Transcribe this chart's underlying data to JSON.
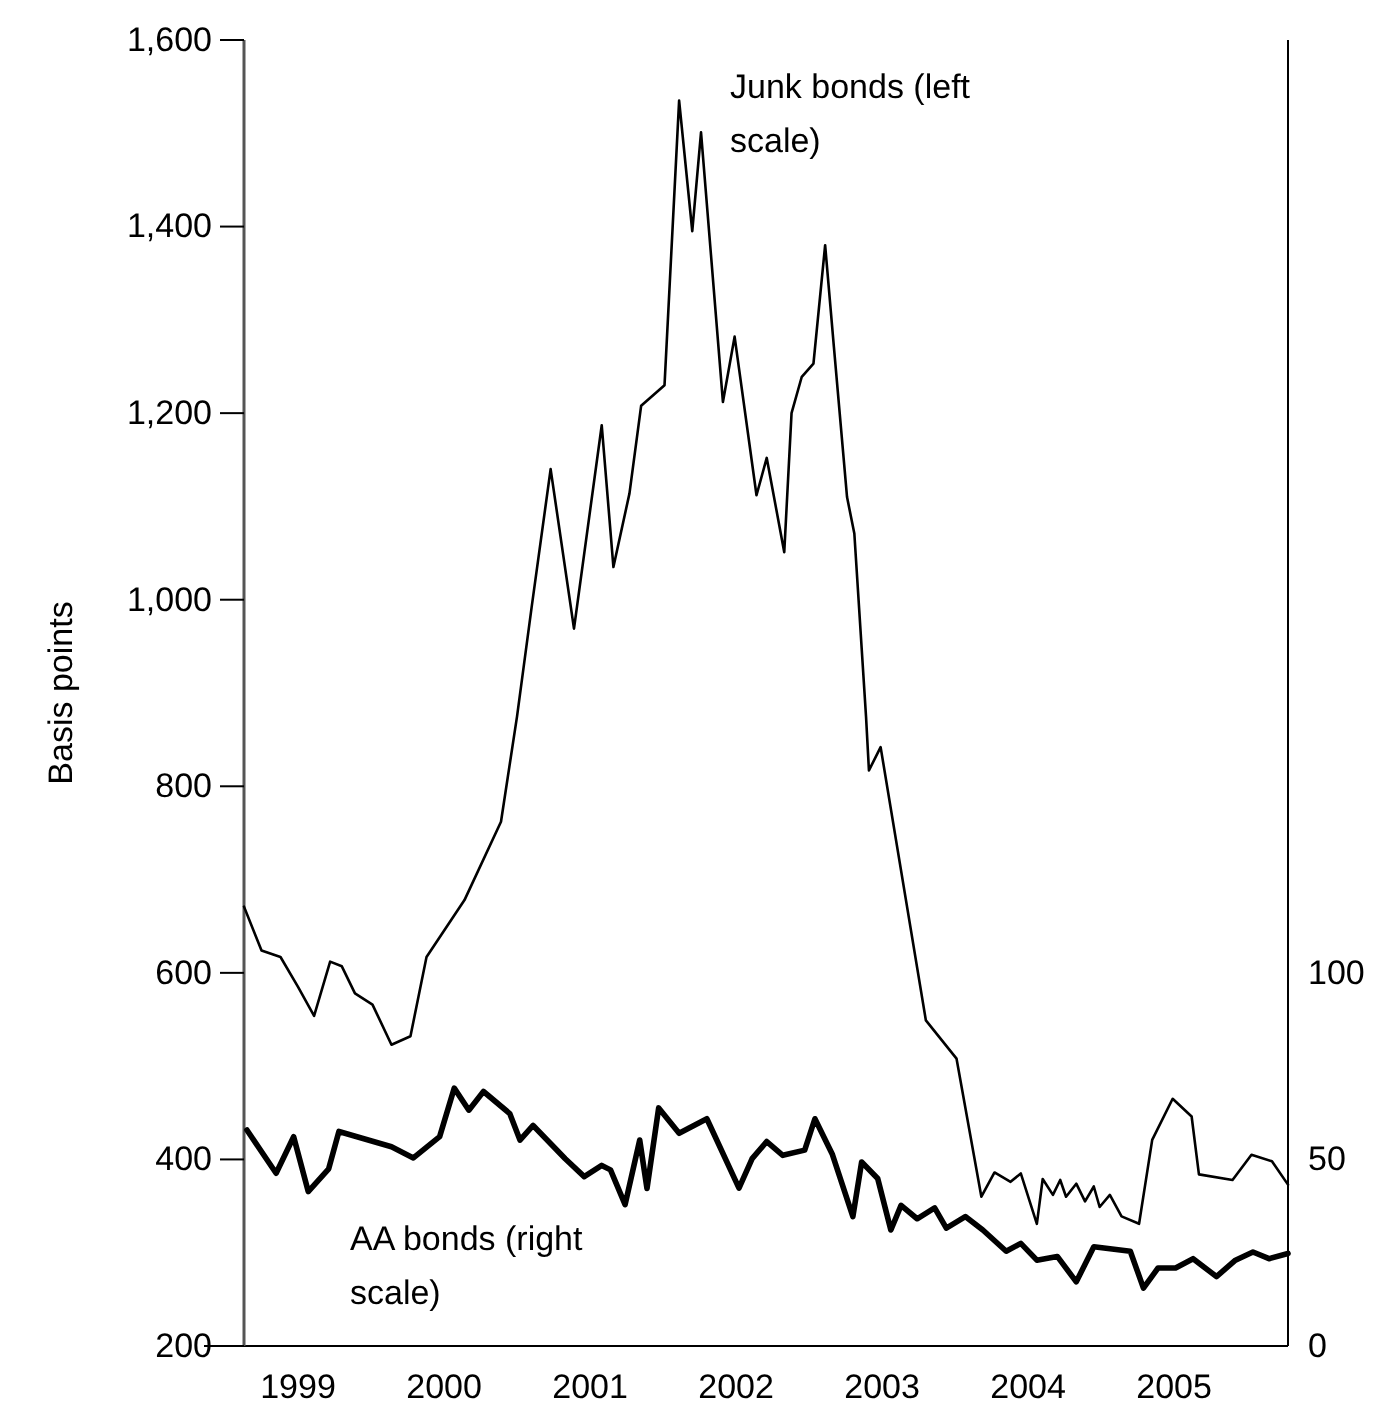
{
  "chart_data": {
    "type": "line",
    "ylabel": "Basis points",
    "xlim": [
      1999.13,
      2006.28
    ],
    "xticks": [
      {
        "value": 1999.5,
        "label": "1999"
      },
      {
        "value": 2000.5,
        "label": "2000"
      },
      {
        "value": 2001.5,
        "label": "2001"
      },
      {
        "value": 2002.5,
        "label": "2002"
      },
      {
        "value": 2003.5,
        "label": "2003"
      },
      {
        "value": 2004.5,
        "label": "2004"
      },
      {
        "value": 2005.5,
        "label": "2005"
      }
    ],
    "ylim": [
      200,
      1600
    ],
    "yticks": [
      200,
      400,
      600,
      800,
      {
        "value": 1000,
        "label": "1,000"
      },
      {
        "value": 1200,
        "label": "1,200"
      },
      {
        "value": 1400,
        "label": "1,400"
      },
      {
        "value": 1600,
        "label": "1,600"
      }
    ],
    "y2lim": [
      0,
      350
    ],
    "y2ticks": [
      0,
      50,
      100
    ],
    "grid": false,
    "legend": false,
    "series": [
      {
        "name": "Junk bonds (left scale)",
        "color": "#000000",
        "x": [
          1999.13,
          1999.25,
          1999.38,
          1999.5,
          1999.61,
          1999.72,
          1999.8,
          1999.89,
          2000.01,
          2000.14,
          2000.27,
          2000.38,
          2000.64,
          2000.89,
          2001.0,
          2001.1,
          2001.23,
          2001.39,
          2001.58,
          2001.66,
          2001.77,
          2001.85,
          2002.01,
          2002.11,
          2002.2,
          2002.26,
          2002.41,
          2002.49,
          2002.64,
          2002.71,
          2002.83,
          2002.88,
          2002.95,
          2003.03,
          2003.11,
          2003.17,
          2003.26,
          2003.31,
          2003.39,
          2003.41,
          2003.49,
          2003.8,
          2004.01,
          2004.18,
          2004.27,
          2004.38,
          2004.45,
          2004.56,
          2004.6,
          2004.67,
          2004.72,
          2004.76,
          2004.83,
          2004.89,
          2004.95,
          2004.99,
          2005.06,
          2005.14,
          2005.26,
          2005.35,
          2005.49,
          2005.62,
          2005.67,
          2005.9,
          2006.03,
          2006.17,
          2006.28
        ],
        "values": [
          671,
          624,
          617,
          585,
          554,
          612,
          607,
          578,
          566,
          523,
          532,
          617,
          678,
          762,
          875,
          992,
          1140,
          969,
          1187,
          1035,
          1114,
          1208,
          1230,
          1535,
          1395,
          1501,
          1212,
          1282,
          1112,
          1152,
          1051,
          1200,
          1239,
          1253,
          1380,
          1271,
          1110,
          1071,
          875,
          817,
          842,
          549,
          508,
          360,
          386,
          376,
          385,
          331,
          379,
          362,
          378,
          360,
          374,
          355,
          371,
          349,
          362,
          339,
          331,
          421,
          465,
          446,
          384,
          378,
          405,
          398,
          373
        ]
      },
      {
        "name": "AA bonds (right scale)",
        "color": "#000000",
        "axis": "y2",
        "x": [
          1999.15,
          1999.35,
          1999.47,
          1999.57,
          1999.71,
          1999.78,
          2000.14,
          2000.29,
          2000.47,
          2000.57,
          2000.67,
          2000.77,
          2000.95,
          2001.02,
          2001.11,
          2001.33,
          2001.46,
          2001.58,
          2001.64,
          2001.74,
          2001.84,
          2001.89,
          2001.97,
          2002.11,
          2002.3,
          2002.52,
          2002.61,
          2002.71,
          2002.82,
          2002.97,
          2003.04,
          2003.16,
          2003.3,
          2003.36,
          2003.47,
          2003.56,
          2003.63,
          2003.74,
          2003.86,
          2003.94,
          2004.07,
          2004.19,
          2004.35,
          2004.45,
          2004.56,
          2004.7,
          2004.83,
          2004.95,
          2005.2,
          2005.29,
          2005.39,
          2005.51,
          2005.63,
          2005.79,
          2005.92,
          2006.04,
          2006.15,
          2006.28
        ],
        "values": [
          57.9,
          46.3,
          56.1,
          41.4,
          47.5,
          57.5,
          53.4,
          50.4,
          56.1,
          69.1,
          63.2,
          68.2,
          62.3,
          55.2,
          59.1,
          50.2,
          45.4,
          48.4,
          47.2,
          37.9,
          55.2,
          42.2,
          63.8,
          57.0,
          60.9,
          42.3,
          50.2,
          54.8,
          51.1,
          52.5,
          60.9,
          51.3,
          34.7,
          49.3,
          44.9,
          31.1,
          37.7,
          34.1,
          37.0,
          31.6,
          34.7,
          31.1,
          25.4,
          27.5,
          23.0,
          24.0,
          17.2,
          26.6,
          25.4,
          15.5,
          20.9,
          20.9,
          23.4,
          18.6,
          23.0,
          25.2,
          23.4,
          24.8
        ]
      }
    ]
  }
}
